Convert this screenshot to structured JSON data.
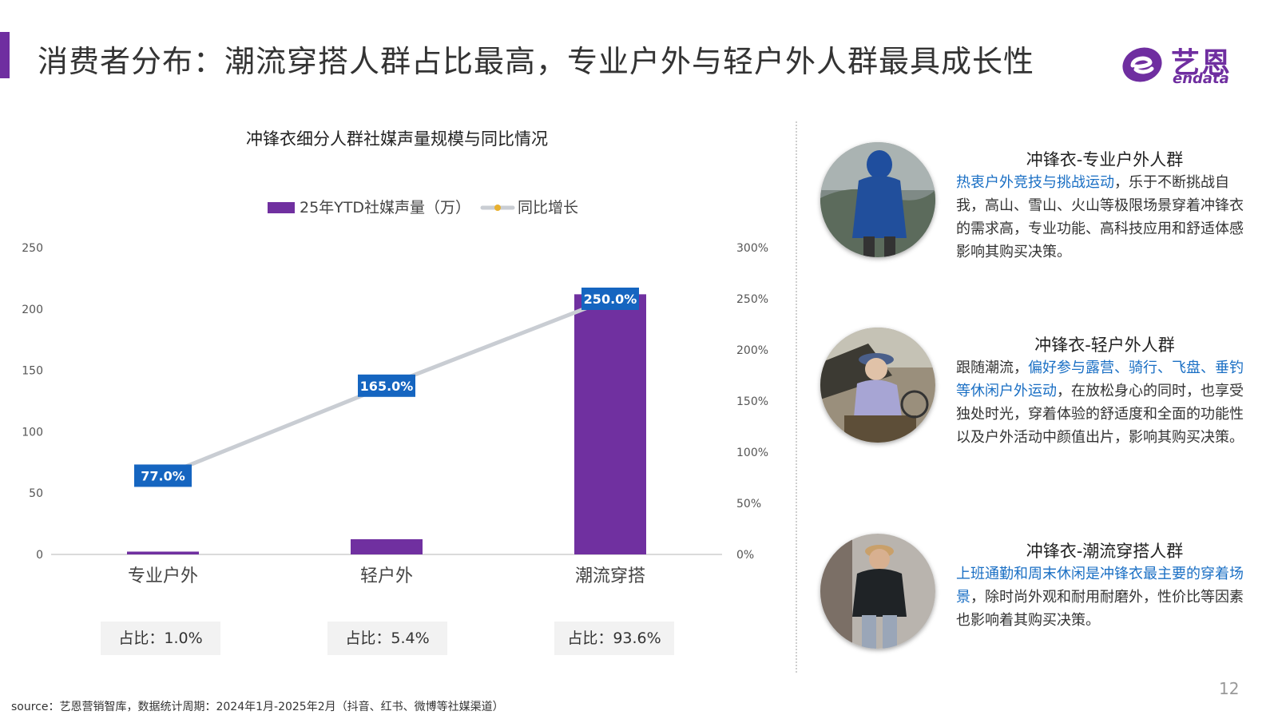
{
  "header": {
    "title": "消费者分布：潮流穿搭人群占比最高，专业户外与轻户外人群最具成长性",
    "logo_cn": "艺恩",
    "logo_en": "endata"
  },
  "colors": {
    "accent": "#6f2ea0",
    "bar": "#7030a0",
    "line": "#c9cdd3",
    "label_bg": "#1565c0",
    "highlight_text": "#1a6fc4"
  },
  "chart_data": {
    "type": "bar",
    "title": "冲锋衣细分人群社媒声量规模与同比情况",
    "categories": [
      "专业户外",
      "轻户外",
      "潮流穿搭"
    ],
    "series": [
      {
        "name": "25年YTD社媒声量（万）",
        "type": "bar",
        "axis": "left",
        "values": [
          2.3,
          12.4,
          212
        ]
      },
      {
        "name": "同比增长",
        "type": "line",
        "axis": "right",
        "values": [
          77.0,
          165.0,
          250.0
        ],
        "labels": [
          "77.0%",
          "165.0%",
          "250.0%"
        ]
      }
    ],
    "y_left": {
      "ticks": [
        0,
        50,
        100,
        150,
        200,
        250
      ],
      "ylim": [
        0,
        250
      ]
    },
    "y_right": {
      "ticks": [
        "0%",
        "50%",
        "100%",
        "150%",
        "200%",
        "250%",
        "300%"
      ],
      "ylim": [
        0,
        300
      ]
    },
    "legend": "top",
    "grid": false
  },
  "shares": [
    "占比：1.0%",
    "占比：5.4%",
    "占比：93.6%"
  ],
  "personas": [
    {
      "title": "冲锋衣-专业户外人群",
      "highlight": "热衷户外竞技与挑战运动",
      "pre": "",
      "post": "，乐于不断挑战自我，高山、雪山、火山等极限场景穿着冲锋衣的需求高，专业功能、高科技应用和舒适体感影响其购买决策。"
    },
    {
      "title": "冲锋衣-轻户外人群",
      "pre": "跟随潮流，",
      "highlight": "偏好参与露营、骑行、飞盘、垂钓等休闲户外运动",
      "post": "，在放松身心的同时，也享受独处时光，穿着体验的舒适度和全面的功能性以及户外活动中颜值出片，影响其购买决策。"
    },
    {
      "title": "冲锋衣-潮流穿搭人群",
      "highlight": "上班通勤和周末休闲是冲锋衣最主要的穿着场景",
      "pre": "",
      "post": "，除时尚外观和耐用耐磨外，性价比等因素也影响着其购买决策。"
    }
  ],
  "footer": {
    "source": "source：艺恩营销智库，数据统计周期：2024年1月-2025年2月（抖音、红书、微博等社媒渠道）",
    "page_number": "12"
  }
}
